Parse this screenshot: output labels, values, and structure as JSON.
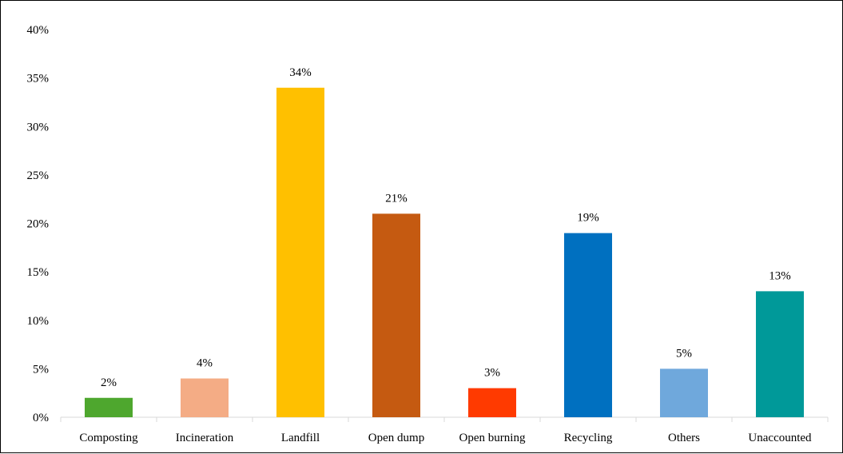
{
  "chart_data": {
    "type": "bar",
    "title": "",
    "xlabel": "",
    "ylabel": "",
    "categories": [
      "Composting",
      "Incineration",
      "Landfill",
      "Open dump",
      "Open burning",
      "Recycling",
      "Others",
      "Unaccounted"
    ],
    "values": [
      2,
      4,
      34,
      21,
      3,
      19,
      5,
      13
    ],
    "value_labels": [
      "2%",
      "4%",
      "34%",
      "21%",
      "3%",
      "19%",
      "5%",
      "13%"
    ],
    "colors": [
      "#4EA72E",
      "#F4AC85",
      "#FFC000",
      "#C55A11",
      "#FF3A00",
      "#0070C0",
      "#6FA8DC",
      "#009999"
    ],
    "ylim": [
      0,
      40
    ],
    "y_ticks": [
      0,
      5,
      10,
      15,
      20,
      25,
      30,
      35,
      40
    ],
    "y_tick_labels": [
      "0%",
      "5%",
      "10%",
      "15%",
      "20%",
      "25%",
      "30%",
      "35%",
      "40%"
    ],
    "grid": false,
    "legend": "none"
  }
}
